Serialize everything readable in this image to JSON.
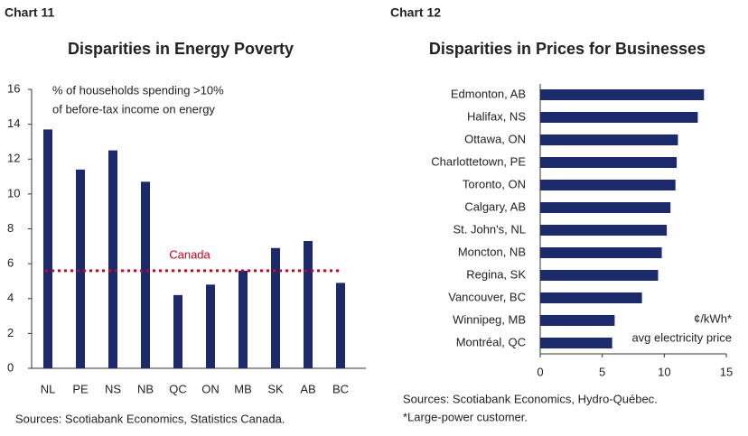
{
  "chart_data": [
    {
      "type": "bar",
      "label": "Chart 11",
      "title": "Disparities in Energy Poverty",
      "annotation": [
        "% of households spending >10%",
        "of before-tax income on energy"
      ],
      "categories": [
        "NL",
        "PE",
        "NS",
        "NB",
        "QC",
        "ON",
        "MB",
        "SK",
        "AB",
        "BC"
      ],
      "values": [
        13.7,
        11.4,
        12.5,
        10.7,
        4.2,
        4.8,
        5.6,
        6.9,
        7.3,
        4.9
      ],
      "color": "#1b2a6b",
      "ylim": [
        0,
        16
      ],
      "yticks": [
        0,
        2,
        4,
        6,
        8,
        10,
        12,
        14,
        16
      ],
      "reference_line": {
        "value": 5.6,
        "label": "Canada",
        "color": "#d0021b"
      },
      "sources": [
        "Sources: Scotiabank Economics, Statistics Canada."
      ]
    },
    {
      "type": "barh",
      "label": "Chart 12",
      "title": "Disparities in Prices for Businesses",
      "annotation": [
        "¢/kWh*",
        "avg electricity price"
      ],
      "categories": [
        "Edmonton, AB",
        "Halifax, NS",
        "Ottawa, ON",
        "Charlottetown, PE",
        "Toronto, ON",
        "Calgary, AB",
        "St. John's, NL",
        "Moncton, NB",
        "Regina, SK",
        "Vancouver, BC",
        "Winnipeg, MB",
        "Montréal, QC"
      ],
      "values": [
        13.2,
        12.7,
        11.1,
        11.0,
        10.9,
        10.5,
        10.2,
        9.8,
        9.5,
        8.2,
        6.0,
        5.8
      ],
      "color": "#1b2a6b",
      "xlim": [
        0,
        15
      ],
      "xticks": [
        0,
        5,
        10,
        15
      ],
      "sources": [
        "Sources: Scotiabank Economics, Hydro-Québec.",
        "*Large-power customer."
      ]
    }
  ]
}
